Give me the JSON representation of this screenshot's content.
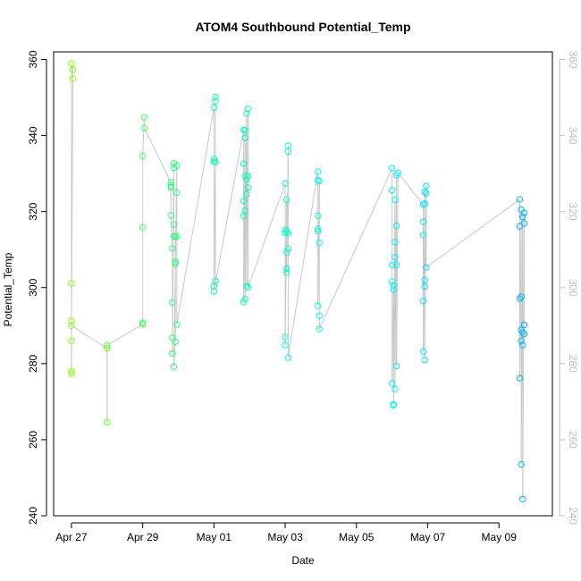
{
  "chart_data": {
    "type": "scatter",
    "title": "ATOM4 Southbound Potential_Temp",
    "xlabel": "Date",
    "ylabel": "Potential_Temp",
    "x_type": "date",
    "xlim": [
      "2021-04-26T12:00",
      "2021-05-10T12:00"
    ],
    "ylim": [
      240,
      362
    ],
    "x_ticks": [
      {
        "date": "2021-04-27T00:00",
        "label": "Apr 27"
      },
      {
        "date": "2021-04-29T00:00",
        "label": "Apr 29"
      },
      {
        "date": "2021-05-01T00:00",
        "label": "May 01"
      },
      {
        "date": "2021-05-03T00:00",
        "label": "May 03"
      },
      {
        "date": "2021-05-05T00:00",
        "label": "May 05"
      },
      {
        "date": "2021-05-07T00:00",
        "label": "May 07"
      },
      {
        "date": "2021-05-09T00:00",
        "label": "May 09"
      }
    ],
    "y_ticks": [
      240,
      260,
      280,
      300,
      320,
      340,
      360
    ],
    "y_ticks_right": [
      240,
      260,
      280,
      300,
      320,
      340,
      360
    ],
    "grid": false,
    "line_color": "#c8c8c8",
    "point_colors": [
      "#7fff00",
      "#00ffb0",
      "#00ffff",
      "#00b3ff"
    ],
    "series": [
      {
        "values": [
          [
            "2021-04-27T00:00",
            291.3
          ],
          [
            "2021-04-27T00:00",
            286.0
          ],
          [
            "2021-04-27T00:00",
            278.0
          ],
          [
            "2021-04-27T00:00",
            277.4
          ],
          [
            "2021-04-27T00:00",
            301.1
          ],
          [
            "2021-04-27T00:00",
            358.9
          ],
          [
            "2021-04-27T01:00",
            357.3
          ],
          [
            "2021-04-27T01:00",
            355.0
          ],
          [
            "2021-04-27T00:00",
            290.0
          ],
          [
            "2021-04-28T00:00",
            284.0
          ],
          [
            "2021-04-28T00:00",
            264.6
          ],
          [
            "2021-04-28T00:00",
            284.8
          ],
          [
            "2021-04-29T00:00",
            290.4
          ],
          [
            "2021-04-29T00:00",
            290.8
          ],
          [
            "2021-04-29T00:00",
            315.8
          ],
          [
            "2021-04-29T00:00",
            334.6
          ],
          [
            "2021-04-29T01:00",
            344.8
          ],
          [
            "2021-04-29T01:00",
            342.0
          ],
          [
            "2021-04-29T19:00",
            327.7
          ],
          [
            "2021-04-29T19:00",
            326.8
          ],
          [
            "2021-04-29T19:00",
            326.3
          ],
          [
            "2021-04-29T19:00",
            319.0
          ],
          [
            "2021-04-29T20:00",
            310.3
          ],
          [
            "2021-04-29T20:00",
            296.1
          ],
          [
            "2021-04-29T20:00",
            286.8
          ],
          [
            "2021-04-29T20:00",
            282.7
          ],
          [
            "2021-04-29T21:00",
            332.7
          ],
          [
            "2021-04-29T21:00",
            331.5
          ],
          [
            "2021-04-29T21:00",
            316.6
          ],
          [
            "2021-04-29T21:00",
            313.5
          ],
          [
            "2021-04-29T22:00",
            313.3
          ],
          [
            "2021-04-29T22:00",
            306.8
          ],
          [
            "2021-04-29T22:00",
            306.3
          ],
          [
            "2021-04-29T22:00",
            285.8
          ],
          [
            "2021-04-29T21:00",
            279.2
          ],
          [
            "2021-04-29T23:00",
            332.1
          ],
          [
            "2021-04-29T23:00",
            325.0
          ],
          [
            "2021-04-29T23:00",
            313.5
          ],
          [
            "2021-04-29T23:00",
            290.3
          ],
          [
            "2021-05-01T00:00",
            347.3
          ],
          [
            "2021-05-01T00:00",
            333.8
          ],
          [
            "2021-05-01T00:00",
            333.1
          ],
          [
            "2021-05-01T00:00",
            300.4
          ],
          [
            "2021-05-01T01:00",
            301.7
          ],
          [
            "2021-05-01T01:00",
            350.1
          ],
          [
            "2021-05-01T01:00",
            349.0
          ],
          [
            "2021-05-01T01:00",
            333.0
          ],
          [
            "2021-05-01T00:00",
            299.0
          ],
          [
            "2021-05-01T20:00",
            341.5
          ],
          [
            "2021-05-01T20:00",
            332.6
          ],
          [
            "2021-05-01T20:00",
            322.8
          ],
          [
            "2021-05-01T20:00",
            318.8
          ],
          [
            "2021-05-01T20:00",
            296.2
          ],
          [
            "2021-05-01T21:00",
            341.4
          ],
          [
            "2021-05-01T21:00",
            339.4
          ],
          [
            "2021-05-01T21:00",
            329.4
          ],
          [
            "2021-05-01T21:00",
            320.2
          ],
          [
            "2021-05-01T21:00",
            297.0
          ],
          [
            "2021-05-01T22:00",
            345.8
          ],
          [
            "2021-05-01T22:00",
            328.5
          ],
          [
            "2021-05-01T22:00",
            324.6
          ],
          [
            "2021-05-01T22:00",
            300.4
          ],
          [
            "2021-05-01T23:00",
            347.0
          ],
          [
            "2021-05-01T23:00",
            329.3
          ],
          [
            "2021-05-01T23:00",
            326.3
          ],
          [
            "2021-05-01T23:00",
            300.0
          ],
          [
            "2021-05-03T00:00",
            327.4
          ],
          [
            "2021-05-03T00:00",
            315.2
          ],
          [
            "2021-05-03T00:00",
            314.4
          ],
          [
            "2021-05-03T00:00",
            287.0
          ],
          [
            "2021-05-03T00:00",
            284.9
          ],
          [
            "2021-05-03T01:00",
            323.1
          ],
          [
            "2021-05-03T01:00",
            314.8
          ],
          [
            "2021-05-03T01:00",
            309.3
          ],
          [
            "2021-05-03T01:00",
            305.0
          ],
          [
            "2021-05-03T01:00",
            303.9
          ],
          [
            "2021-05-03T02:00",
            337.3
          ],
          [
            "2021-05-03T02:00",
            335.8
          ],
          [
            "2021-05-03T02:00",
            314.3
          ],
          [
            "2021-05-03T02:00",
            310.2
          ],
          [
            "2021-05-03T02:00",
            281.6
          ],
          [
            "2021-05-03T22:00",
            330.5
          ],
          [
            "2021-05-03T22:00",
            328.3
          ],
          [
            "2021-05-03T22:00",
            318.9
          ],
          [
            "2021-05-03T22:00",
            315.4
          ],
          [
            "2021-05-03T22:00",
            314.8
          ],
          [
            "2021-05-03T22:00",
            295.2
          ],
          [
            "2021-05-03T23:00",
            328.0
          ],
          [
            "2021-05-03T23:00",
            311.8
          ],
          [
            "2021-05-03T23:00",
            292.6
          ],
          [
            "2021-05-03T23:00",
            289.1
          ],
          [
            "2021-05-06T00:00",
            331.4
          ],
          [
            "2021-05-06T00:00",
            325.6
          ],
          [
            "2021-05-06T00:00",
            305.9
          ],
          [
            "2021-05-06T00:00",
            301.6
          ],
          [
            "2021-05-06T00:00",
            274.8
          ],
          [
            "2021-05-06T01:00",
            300.5
          ],
          [
            "2021-05-06T01:00",
            299.5
          ],
          [
            "2021-05-06T01:00",
            269.3
          ],
          [
            "2021-05-06T01:00",
            269.0
          ],
          [
            "2021-05-06T02:00",
            323.1
          ],
          [
            "2021-05-06T02:00",
            308.0
          ],
          [
            "2021-05-06T02:00",
            312.0
          ],
          [
            "2021-05-06T02:00",
            273.3
          ],
          [
            "2021-05-06T03:00",
            329.6
          ],
          [
            "2021-05-06T03:00",
            316.3
          ],
          [
            "2021-05-06T03:00",
            306.0
          ],
          [
            "2021-05-06T03:00",
            279.4
          ],
          [
            "2021-05-06T04:00",
            330.2
          ],
          [
            "2021-05-06T21:00",
            321.8
          ],
          [
            "2021-05-06T21:00",
            317.3
          ],
          [
            "2021-05-06T21:00",
            313.8
          ],
          [
            "2021-05-06T21:00",
            296.5
          ],
          [
            "2021-05-06T21:00",
            283.2
          ],
          [
            "2021-05-06T22:00",
            325.2
          ],
          [
            "2021-05-06T22:00",
            322.1
          ],
          [
            "2021-05-06T22:00",
            302.0
          ],
          [
            "2021-05-06T22:00",
            300.3
          ],
          [
            "2021-05-06T22:00",
            281.0
          ],
          [
            "2021-05-06T23:00",
            326.7
          ],
          [
            "2021-05-06T23:00",
            324.8
          ],
          [
            "2021-05-06T23:00",
            305.3
          ],
          [
            "2021-05-09T14:00",
            323.2
          ],
          [
            "2021-05-09T14:00",
            316.1
          ],
          [
            "2021-05-09T14:00",
            297.1
          ],
          [
            "2021-05-09T14:00",
            276.2
          ],
          [
            "2021-05-09T15:00",
            320.5
          ],
          [
            "2021-05-09T15:00",
            297.6
          ],
          [
            "2021-05-09T15:00",
            288.9
          ],
          [
            "2021-05-09T15:00",
            286.0
          ],
          [
            "2021-05-09T15:00",
            253.5
          ],
          [
            "2021-05-09T16:00",
            318.6
          ],
          [
            "2021-05-09T16:00",
            288.2
          ],
          [
            "2021-05-09T16:00",
            284.9
          ],
          [
            "2021-05-09T16:00",
            244.4
          ],
          [
            "2021-05-09T17:00",
            319.6
          ],
          [
            "2021-05-09T17:00",
            316.9
          ],
          [
            "2021-05-09T17:00",
            290.2
          ],
          [
            "2021-05-09T17:00",
            287.8
          ]
        ]
      }
    ]
  }
}
